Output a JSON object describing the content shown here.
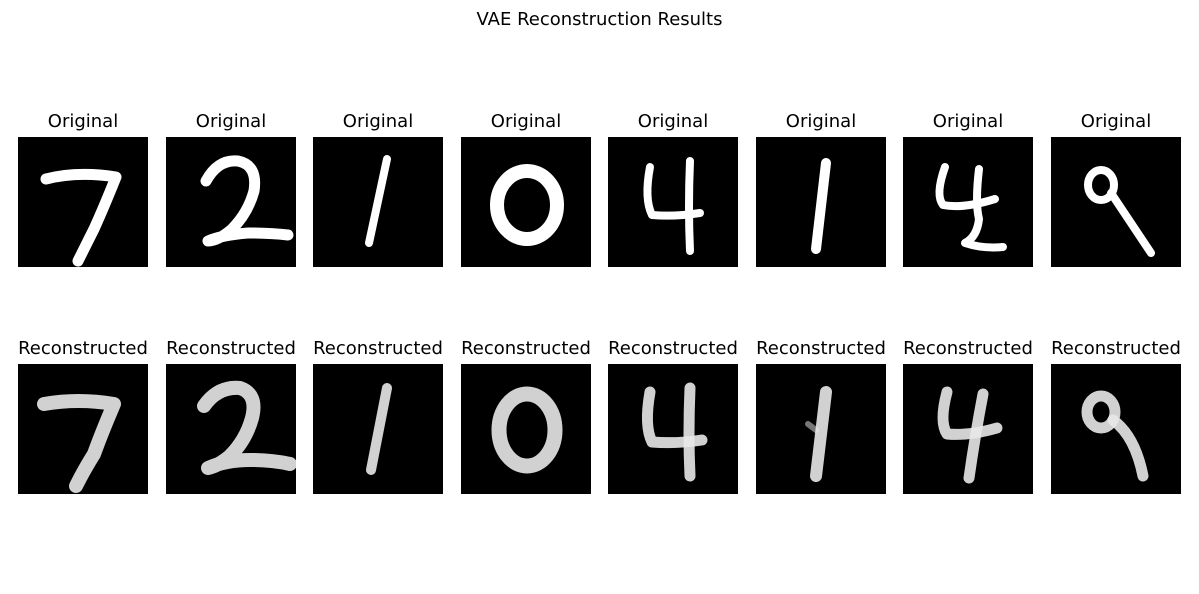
{
  "figure": {
    "title": "VAE Reconstruction Results"
  },
  "rows": [
    {
      "caption": "Original",
      "digits": [
        "7",
        "2",
        "1",
        "0",
        "4",
        "1",
        "4",
        "9"
      ]
    },
    {
      "caption": "Reconstructed",
      "digits": [
        "7",
        "2",
        "1",
        "0",
        "4",
        "1",
        "4",
        "9"
      ]
    }
  ],
  "colors": {
    "background": "#000000",
    "stroke": "#ffffff"
  }
}
